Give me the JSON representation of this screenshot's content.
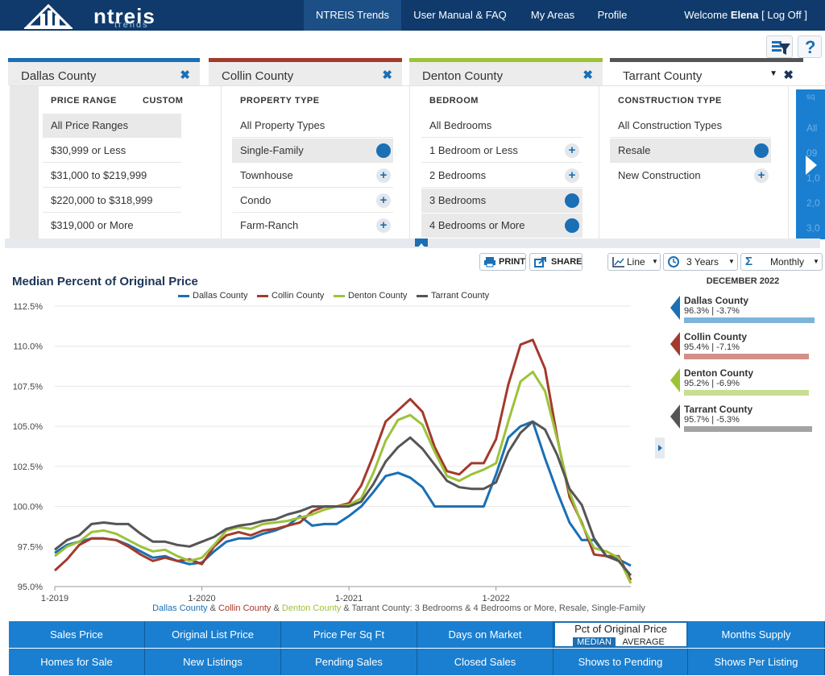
{
  "nav": {
    "logo_text": "ntreis",
    "logo_sub": "trends",
    "items": [
      {
        "label": "NTREIS Trends"
      },
      {
        "label": "User Manual & FAQ"
      },
      {
        "label": "My Areas"
      },
      {
        "label": "Profile"
      }
    ],
    "welcome_prefix": "Welcome",
    "user": "Elena",
    "logoff": "[ Log Off ]"
  },
  "toolbar": {
    "filter_icon": "filter-icon",
    "help_label": "?"
  },
  "tabs": [
    {
      "label": "Dallas County",
      "close": "✖",
      "color": "#1a6fb5"
    },
    {
      "label": "Collin County",
      "close": "✖",
      "color": "#a33a2c"
    },
    {
      "label": "Denton County",
      "close": "✖",
      "color": "#9cc23a"
    },
    {
      "label": "Tarrant County",
      "close": "✖",
      "caret": "▼",
      "color": "#555555"
    }
  ],
  "filters": {
    "price": {
      "heading": "PRICE RANGE",
      "custom": "CUSTOM",
      "options": [
        "All Price Ranges",
        "$30,999 or Less",
        "$31,000 to $219,999",
        "$220,000 to $318,999",
        "$319,000 or More"
      ]
    },
    "property": {
      "heading": "PROPERTY TYPE",
      "options": [
        "All Property Types",
        "Single-Family",
        "Townhouse",
        "Condo",
        "Farm-Ranch"
      ]
    },
    "bedroom": {
      "heading": "BEDROOM",
      "options": [
        "All Bedrooms",
        "1 Bedroom or Less",
        "2 Bedrooms",
        "3 Bedrooms",
        "4 Bedrooms or More"
      ]
    },
    "construction": {
      "heading": "CONSTRUCTION TYPE",
      "options": [
        "All Construction Types",
        "Resale",
        "New Construction"
      ]
    },
    "more": {
      "peek": [
        "sq",
        "All",
        "09",
        "1,0",
        "2,0",
        "3,0"
      ]
    }
  },
  "chart_controls": {
    "print": "PRINT",
    "share": "SHARE",
    "type": "Line",
    "range": "3 Years",
    "interval": "Monthly"
  },
  "chart_data": {
    "type": "line",
    "title": "Median Percent of Original Price",
    "subtitle_parts": [
      {
        "text": "Dallas County",
        "color": "#1a6fb5"
      },
      {
        "text": " & ",
        "color": "#555555"
      },
      {
        "text": "Collin County",
        "color": "#a33a2c"
      },
      {
        "text": " & ",
        "color": "#555555"
      },
      {
        "text": "Denton County",
        "color": "#9cc23a"
      },
      {
        "text": " & Tarrant County: 3 Bedrooms & 4 Bedrooms or More, Resale, Single-Family",
        "color": "#555555"
      }
    ],
    "ylim": [
      95.0,
      112.5
    ],
    "yticks": [
      "112.5%",
      "110.0%",
      "107.5%",
      "105.0%",
      "102.5%",
      "100.0%",
      "97.5%",
      "95.0%"
    ],
    "ytick_values": [
      112.5,
      110.0,
      107.5,
      105.0,
      102.5,
      100.0,
      97.5,
      95.0
    ],
    "xticks": [
      "1-2019",
      "1-2020",
      "1-2021",
      "1-2022"
    ],
    "xtick_index": [
      0,
      12,
      24,
      36
    ],
    "x_count": 48,
    "series": [
      {
        "name": "Dallas County",
        "color": "#1a6fb5",
        "values": [
          97.1,
          97.6,
          97.8,
          98.0,
          98.0,
          97.9,
          97.6,
          97.2,
          96.8,
          96.9,
          96.6,
          96.4,
          96.5,
          97.2,
          97.8,
          98.0,
          98.0,
          98.3,
          98.5,
          98.8,
          99.4,
          98.8,
          98.9,
          98.9,
          99.4,
          100.0,
          100.9,
          101.9,
          102.1,
          101.8,
          101.2,
          100.0,
          100.0,
          100.0,
          100.0,
          100.0,
          102.0,
          104.3,
          105.0,
          105.3,
          103.0,
          100.9,
          99.0,
          97.9,
          97.9,
          96.9,
          96.7,
          96.3
        ]
      },
      {
        "name": "Collin County",
        "color": "#a33a2c",
        "values": [
          96.0,
          96.7,
          97.6,
          98.0,
          98.0,
          97.9,
          97.5,
          97.0,
          96.6,
          96.8,
          96.6,
          96.7,
          96.4,
          97.5,
          98.2,
          98.4,
          98.2,
          98.5,
          98.6,
          98.8,
          99.0,
          99.7,
          100.0,
          100.0,
          100.2,
          101.3,
          103.2,
          105.3,
          106.0,
          106.7,
          105.9,
          103.7,
          102.2,
          102.0,
          102.7,
          102.7,
          104.2,
          107.6,
          110.1,
          110.4,
          108.6,
          104.3,
          100.6,
          99.0,
          97.0,
          96.9,
          96.9,
          95.4
        ]
      },
      {
        "name": "Denton County",
        "color": "#9cc23a",
        "values": [
          96.9,
          97.5,
          97.8,
          98.4,
          98.5,
          98.3,
          97.9,
          97.5,
          97.2,
          97.3,
          96.9,
          96.6,
          96.8,
          97.6,
          98.5,
          98.7,
          98.6,
          98.9,
          99.0,
          99.1,
          99.3,
          99.5,
          99.8,
          100.0,
          100.1,
          100.5,
          102.1,
          104.1,
          105.4,
          105.7,
          105.1,
          103.4,
          101.9,
          101.6,
          102.0,
          102.3,
          102.7,
          105.3,
          107.8,
          108.4,
          107.2,
          104.2,
          100.9,
          98.9,
          97.4,
          97.2,
          96.8,
          95.2
        ]
      },
      {
        "name": "Tarrant County",
        "color": "#555555",
        "values": [
          97.3,
          97.9,
          98.2,
          98.9,
          99.0,
          98.9,
          98.9,
          98.3,
          97.8,
          97.8,
          97.6,
          97.5,
          97.8,
          98.1,
          98.6,
          98.8,
          98.9,
          99.1,
          99.2,
          99.5,
          99.7,
          100.0,
          100.0,
          100.0,
          100.0,
          100.3,
          101.4,
          102.8,
          103.7,
          104.3,
          103.6,
          102.6,
          101.6,
          101.2,
          101.1,
          101.1,
          101.5,
          103.4,
          104.6,
          105.3,
          104.8,
          103.2,
          101.1,
          100.1,
          98.0,
          96.9,
          96.6,
          95.7
        ]
      }
    ]
  },
  "summary": {
    "heading": "DECEMBER 2022",
    "items": [
      {
        "name": "Dallas County",
        "value": "96.3% | -3.7%",
        "color": "#1a6fb5",
        "bar_color": "#7fb3d9"
      },
      {
        "name": "Collin County",
        "value": "95.4% | -7.1%",
        "color": "#a33a2c",
        "bar_color": "#d39089"
      },
      {
        "name": "Denton County",
        "value": "95.2% | -6.9%",
        "color": "#9cc23a",
        "bar_color": "#c9de92"
      },
      {
        "name": "Tarrant County",
        "value": "95.7% | -5.3%",
        "color": "#555555",
        "bar_color": "#a3a3a3"
      }
    ]
  },
  "metrics": {
    "row1": [
      "Sales Price",
      "Original List Price",
      "Price Per Sq Ft",
      "Days on Market",
      "Pct of Original Price",
      "Months Supply"
    ],
    "row2": [
      "Homes for Sale",
      "New Listings",
      "Pending Sales",
      "Closed Sales",
      "Shows to Pending",
      "Shows Per Listing"
    ],
    "active_median": "MEDIAN",
    "active_average": "AVERAGE"
  }
}
